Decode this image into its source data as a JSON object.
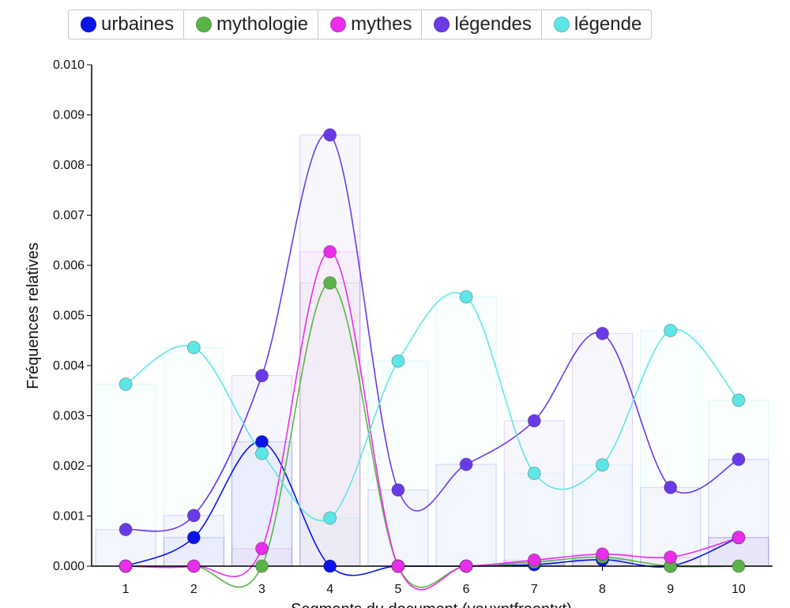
{
  "chart_data": {
    "type": "line",
    "xlabel": "Segments du document (yeuxntfreentxt)",
    "ylabel": "Fréquences relatives",
    "ylim": [
      0,
      0.01
    ],
    "yticks": [
      "0.000",
      "0.001",
      "0.002",
      "0.003",
      "0.004",
      "0.005",
      "0.006",
      "0.007",
      "0.008",
      "0.009",
      "0.010"
    ],
    "categories": [
      "1",
      "2",
      "3",
      "4",
      "5",
      "6",
      "7",
      "8",
      "9",
      "10"
    ],
    "legend_position": "top",
    "series": [
      {
        "name": "urbaines",
        "color": "#0a14e8",
        "values": [
          0,
          0.00057,
          0.00248,
          0,
          0,
          0,
          3e-05,
          0.00013,
          0,
          0.00057
        ]
      },
      {
        "name": "mythologie",
        "color": "#5cb34a",
        "values": [
          0,
          0,
          0,
          0.00565,
          0,
          0,
          8e-05,
          0.00018,
          0,
          0
        ]
      },
      {
        "name": "mythes",
        "color": "#e82ee8",
        "values": [
          0,
          0,
          0.00035,
          0.00627,
          0,
          0,
          0.00012,
          0.00024,
          0.00018,
          0.00057
        ]
      },
      {
        "name": "légendes",
        "color": "#6b3ae8",
        "values": [
          0.00073,
          0.00101,
          0.0038,
          0.0086,
          0.00152,
          0.00203,
          0.0029,
          0.00464,
          0.00157,
          0.00213
        ]
      },
      {
        "name": "légende",
        "color": "#5ee6e6",
        "values": [
          0.00363,
          0.00436,
          0.00225,
          0.00096,
          0.00409,
          0.00537,
          0.00185,
          0.00202,
          0.0047,
          0.00331
        ]
      }
    ]
  }
}
